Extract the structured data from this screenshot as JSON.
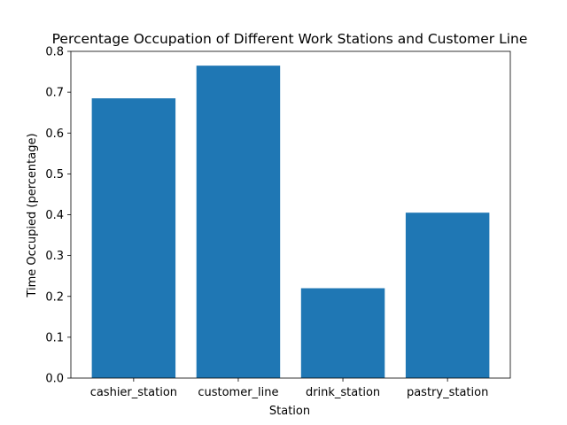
{
  "chart_data": {
    "type": "bar",
    "title": "Percentage Occupation of Different Work Stations and Customer Line",
    "xlabel": "Station",
    "ylabel": "Time Occupied (percentage)",
    "categories": [
      "cashier_station",
      "customer_line",
      "drink_station",
      "pastry_station"
    ],
    "values": [
      0.685,
      0.765,
      0.22,
      0.405
    ],
    "ylim": [
      0,
      0.8
    ],
    "yticks": [
      "0.0",
      "0.1",
      "0.2",
      "0.3",
      "0.4",
      "0.5",
      "0.6",
      "0.7",
      "0.8"
    ],
    "bar_color": "#1f77b4",
    "grid": false,
    "legend": "none"
  }
}
